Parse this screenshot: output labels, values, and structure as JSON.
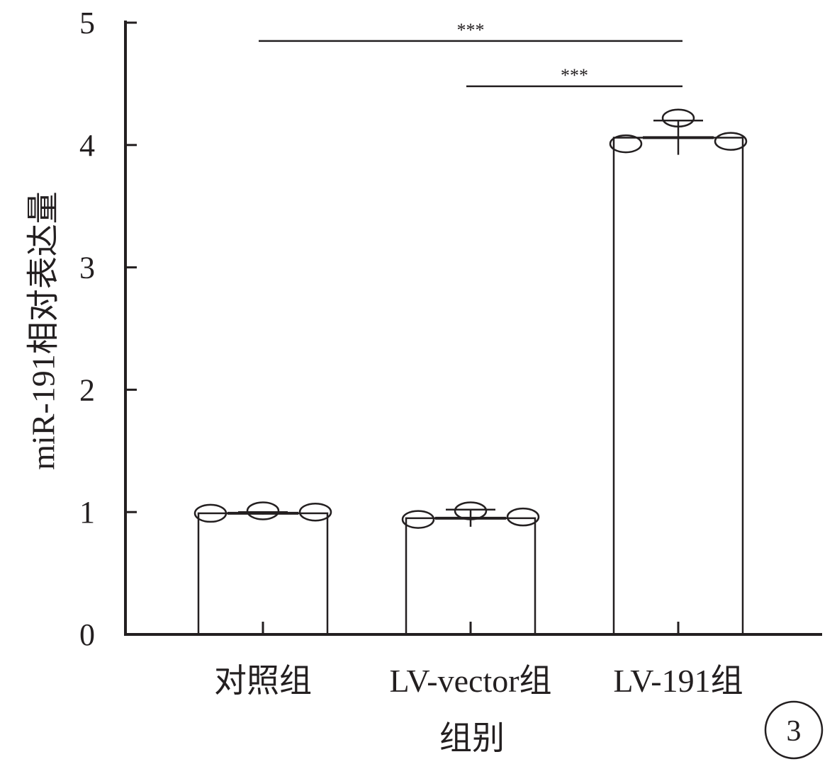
{
  "chart_data": {
    "type": "bar",
    "categories": [
      "对照组",
      "LV-vector组",
      "LV-191组"
    ],
    "values": [
      0.99,
      0.95,
      4.06
    ],
    "error": [
      0.01,
      0.07,
      0.14
    ],
    "points": [
      [
        0.99,
        1.01,
        1.0
      ],
      [
        0.94,
        1.01,
        0.96
      ],
      [
        4.01,
        4.22,
        4.03
      ]
    ],
    "xlabel": "组别",
    "ylabel": "miR-191相对表达量",
    "ylim": [
      0,
      5
    ],
    "yticks": [
      0,
      1,
      2,
      3,
      4,
      5
    ],
    "significance": [
      {
        "from": 0,
        "to": 2,
        "label": "***",
        "y": 4.85
      },
      {
        "from": 1,
        "to": 2,
        "label": "***",
        "y": 4.48
      }
    ],
    "grid": false,
    "bar_fill": "#ffffff",
    "line_color": "#231f20"
  },
  "panel_label": "3"
}
